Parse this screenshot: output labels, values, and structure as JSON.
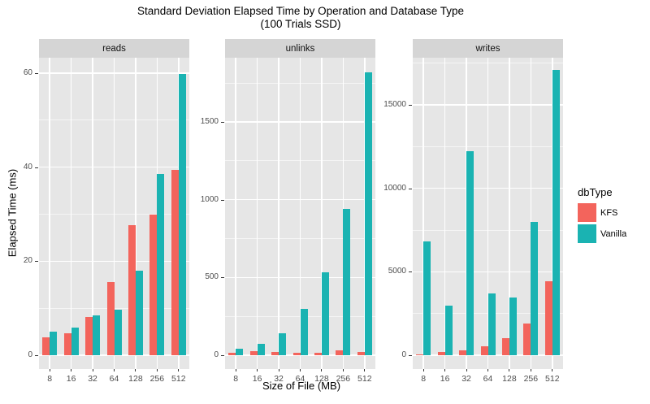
{
  "title": {
    "line1": "Standard Deviation Elapsed Time by Operation and Database Type",
    "line2": "(100 Trials SSD)"
  },
  "axes": {
    "x_label": "Size of File (MB)",
    "y_label": "Elapsed Time (ms)"
  },
  "legend": {
    "title": "dbType",
    "entries": [
      {
        "label": "KFS",
        "color": "#F3645C"
      },
      {
        "label": "Vanilla",
        "color": "#1AB3B2"
      }
    ]
  },
  "colors": {
    "panel_bg": "#E6E6E6",
    "strip_bg": "#D5D5D5",
    "gridline": "#FFFFFF",
    "axis_text": "#4D4D4D",
    "tick_mark": "#333333"
  },
  "chart_data": {
    "type": "bar",
    "grouped": true,
    "title": "Standard Deviation Elapsed Time by Operation and Database Type (100 Trials SSD)",
    "xlabel": "Size of File (MB)",
    "ylabel": "Elapsed Time (ms)",
    "legend_title": "dbType",
    "legend_position": "right",
    "grid": true,
    "categories": [
      "8",
      "16",
      "32",
      "64",
      "128",
      "256",
      "512"
    ],
    "facets": [
      {
        "label": "reads",
        "y_ticks": [
          0,
          20,
          40,
          60
        ],
        "y_max_display": 63.3,
        "series": [
          {
            "name": "KFS",
            "values": [
              3.8,
              4.6,
              8.1,
              15.6,
              27.6,
              29.9,
              39.4
            ]
          },
          {
            "name": "Vanilla",
            "values": [
              5.1,
              5.9,
              8.4,
              9.7,
              18.0,
              38.6,
              59.9
            ]
          }
        ]
      },
      {
        "label": "unlinks",
        "y_ticks": [
          0,
          500,
          1000,
          1500
        ],
        "y_max_display": 1912,
        "series": [
          {
            "name": "KFS",
            "values": [
              15,
              28,
              22,
              15,
              15,
              34,
              20
            ]
          },
          {
            "name": "Vanilla",
            "values": [
              40,
              72,
              140,
              298,
              532,
              940,
              1820
            ]
          }
        ]
      },
      {
        "label": "writes",
        "y_ticks": [
          0,
          5000,
          10000,
          15000
        ],
        "y_max_display": 17830,
        "series": [
          {
            "name": "KFS",
            "values": [
              60,
              190,
              310,
              540,
              1020,
              1920,
              4440
            ]
          },
          {
            "name": "Vanilla",
            "values": [
              6800,
              2980,
              12250,
              3700,
              3450,
              8000,
              17100
            ]
          }
        ]
      }
    ]
  }
}
